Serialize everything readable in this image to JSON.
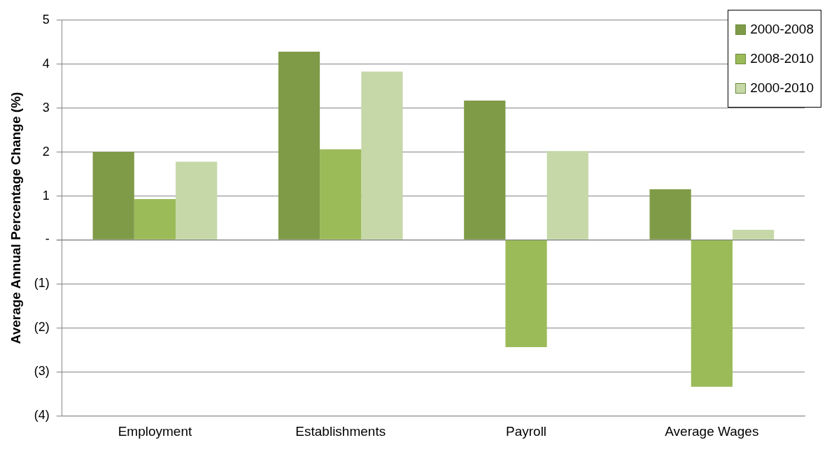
{
  "chart_data": {
    "type": "bar",
    "ylabel": "Average Annual Percentage Change (%)",
    "categories": [
      "Employment",
      "Establishments",
      "Payroll",
      "Average Wages"
    ],
    "series": [
      {
        "name": "2000-2008",
        "color": "#7f9b47",
        "values": [
          2.0,
          4.28,
          3.17,
          1.15
        ]
      },
      {
        "name": "2008-2010",
        "color": "#9bbb59",
        "values": [
          0.93,
          2.06,
          -2.44,
          -3.34
        ]
      },
      {
        "name": "2000-2010",
        "color": "#c6d8a8",
        "values": [
          1.78,
          3.83,
          2.02,
          0.23
        ]
      }
    ],
    "ylim": [
      -4,
      5
    ],
    "yticks": [
      {
        "value": -4,
        "label": "(4)"
      },
      {
        "value": -3,
        "label": "(3)"
      },
      {
        "value": -2,
        "label": "(2)"
      },
      {
        "value": -1,
        "label": "(1)"
      },
      {
        "value": 0,
        "label": "-"
      },
      1,
      2,
      3,
      4,
      5
    ],
    "grid": "y",
    "legend": "top right"
  }
}
